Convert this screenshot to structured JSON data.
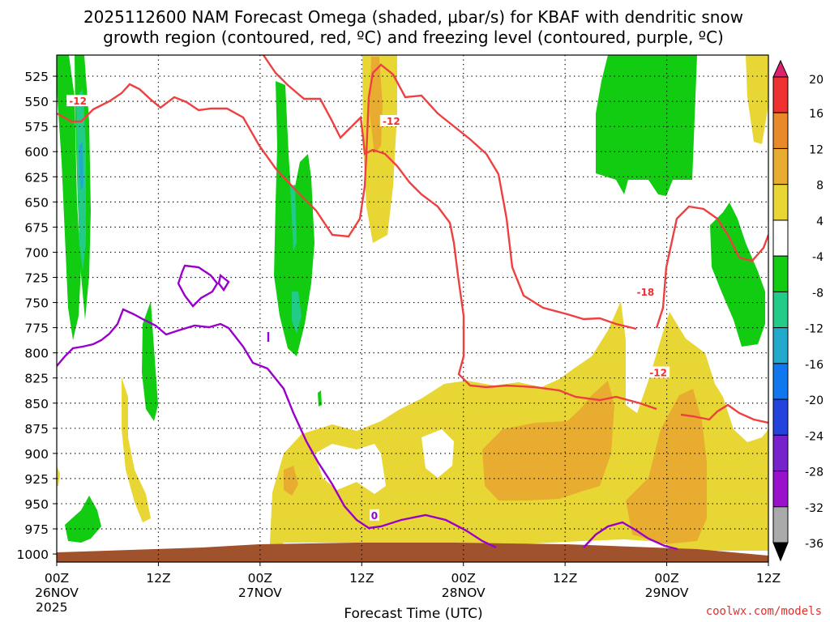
{
  "chart_data": {
    "type": "contour",
    "title_lines": [
      "2025112600 NAM Forecast Omega (shaded, μbar/s) for KBAF with dendritic snow",
      "growth region (contoured, red, ºC) and freezing level (contoured, purple, ºC)"
    ],
    "xlabel": "Forecast Time (UTC)",
    "credit": "coolwx.com/models",
    "x_ticks": [
      {
        "label": "00Z",
        "sub": "26NOV",
        "sub2": "2025",
        "hour": 0
      },
      {
        "label": "12Z",
        "sub": "",
        "sub2": "",
        "hour": 12
      },
      {
        "label": "00Z",
        "sub": "27NOV",
        "sub2": "",
        "hour": 24
      },
      {
        "label": "12Z",
        "sub": "",
        "sub2": "",
        "hour": 36
      },
      {
        "label": "00Z",
        "sub": "28NOV",
        "sub2": "",
        "hour": 48
      },
      {
        "label": "12Z",
        "sub": "",
        "sub2": "",
        "hour": 60
      },
      {
        "label": "00Z",
        "sub": "29NOV",
        "sub2": "",
        "hour": 72
      },
      {
        "label": "12Z",
        "sub": "",
        "sub2": "",
        "hour": 84
      }
    ],
    "x_range_hours": [
      0,
      84
    ],
    "y_ticks": [
      "525",
      "550",
      "575",
      "600",
      "625",
      "650",
      "675",
      "700",
      "725",
      "750",
      "775",
      "800",
      "825",
      "850",
      "875",
      "900",
      "925",
      "950",
      "975",
      "1000"
    ],
    "y_range_mb": [
      504,
      1008
    ],
    "colorbar": {
      "labels": [
        "20",
        "16",
        "12",
        "8",
        "4",
        "-4",
        "-8",
        "-12",
        "-16",
        "-20",
        "-24",
        "-28",
        "-32",
        "-36"
      ],
      "colors": [
        "#e0206e",
        "#ee3030",
        "#e88a2a",
        "#e8ad30",
        "#e8d634",
        "#ffffff",
        "#11cc11",
        "#22cc88",
        "#22aacc",
        "#1177ee",
        "#2244dd",
        "#7722cc",
        "#9911cc",
        "#aaaaaa",
        "#000000"
      ]
    },
    "contour_labels": [
      {
        "text": "-12",
        "color": "#ee3030",
        "hour": 2.5,
        "mb": 550
      },
      {
        "text": "-12",
        "color": "#ee3030",
        "hour": 39.5,
        "mb": 570
      },
      {
        "text": "-18",
        "color": "#ee3030",
        "hour": 69.5,
        "mb": 740
      },
      {
        "text": "-12",
        "color": "#ee3030",
        "hour": 71,
        "mb": 820
      },
      {
        "text": "0",
        "color": "#9900cc",
        "hour": 37.5,
        "mb": 962
      }
    ],
    "ground_color": "#a0522d"
  }
}
